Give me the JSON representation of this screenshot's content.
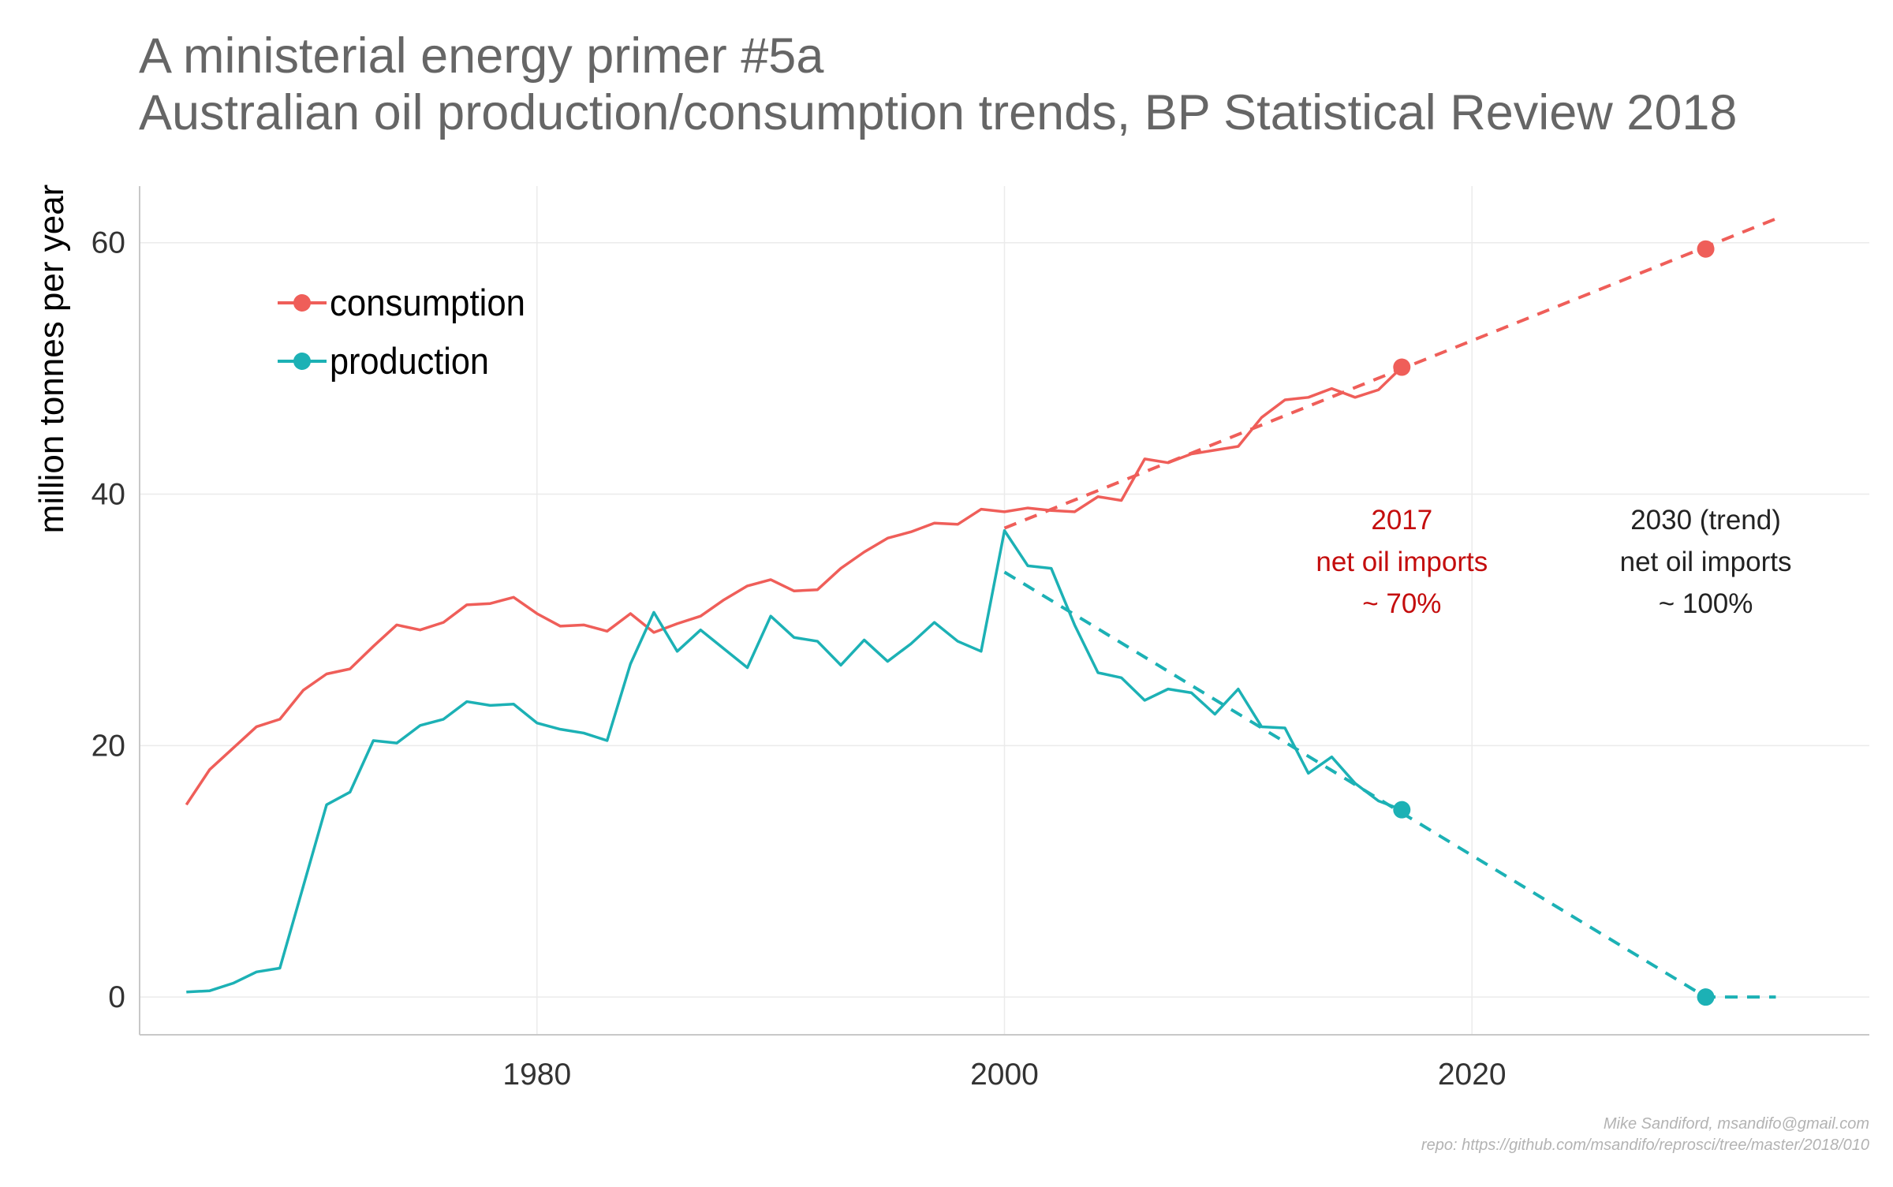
{
  "title": "A ministerial energy primer #5a",
  "subtitle": "Australian oil production/consumption trends, BP Statistical Review 2018",
  "credit_line1": "Mike Sandiford, msandifo@gmail.com",
  "credit_line2": "repo: https://github.com/msandifo/reprosci/tree/master/2018/010",
  "colors": {
    "consumption": "#ef5e59",
    "production": "#1cb1b5",
    "annotation_2017": "#c40d0d",
    "annotation_2030": "#222222"
  },
  "chart_data": {
    "type": "line",
    "ylabel": "million tonnes per year",
    "xlabel": "",
    "xlim": [
      1963,
      2037
    ],
    "ylim": [
      -3,
      64.5
    ],
    "x_ticks": [
      1980,
      2000,
      2020
    ],
    "y_ticks": [
      0,
      20,
      40,
      60
    ],
    "grid": true,
    "legend_position": "top-left",
    "x": [
      1965,
      1966,
      1967,
      1968,
      1969,
      1970,
      1971,
      1972,
      1973,
      1974,
      1975,
      1976,
      1977,
      1978,
      1979,
      1980,
      1981,
      1982,
      1983,
      1984,
      1985,
      1986,
      1987,
      1988,
      1989,
      1990,
      1991,
      1992,
      1993,
      1994,
      1995,
      1996,
      1997,
      1998,
      1999,
      2000,
      2001,
      2002,
      2003,
      2004,
      2005,
      2006,
      2007,
      2008,
      2009,
      2010,
      2011,
      2012,
      2013,
      2014,
      2015,
      2016,
      2017
    ],
    "series": [
      {
        "name": "consumption",
        "values": [
          15.3,
          18.1,
          19.8,
          21.5,
          22.1,
          24.4,
          25.7,
          26.1,
          27.9,
          29.6,
          29.2,
          29.8,
          31.2,
          31.3,
          31.8,
          30.5,
          29.5,
          29.6,
          29.1,
          30.5,
          29.0,
          29.7,
          30.3,
          31.6,
          32.7,
          33.2,
          32.3,
          32.4,
          34.1,
          35.4,
          36.5,
          37.0,
          37.7,
          37.6,
          38.8,
          38.6,
          38.9,
          38.7,
          38.6,
          39.8,
          39.5,
          42.8,
          42.5,
          43.2,
          43.5,
          43.8,
          46.1,
          47.5,
          47.7,
          48.4,
          47.7,
          48.3,
          50.1
        ]
      },
      {
        "name": "production",
        "values": [
          0.4,
          0.5,
          1.1,
          2.0,
          2.3,
          8.8,
          15.3,
          16.3,
          20.4,
          20.2,
          21.6,
          22.1,
          23.5,
          23.2,
          23.3,
          21.8,
          21.3,
          21.0,
          20.4,
          26.5,
          30.6,
          27.5,
          29.2,
          27.7,
          26.2,
          30.3,
          28.6,
          28.3,
          26.4,
          28.4,
          26.7,
          28.1,
          29.8,
          28.3,
          27.5,
          37.1,
          34.3,
          34.1,
          29.6,
          25.8,
          25.4,
          23.6,
          24.5,
          24.2,
          22.5,
          24.5,
          21.5,
          21.4,
          17.8,
          19.1,
          17.0,
          15.6,
          14.9
        ]
      }
    ],
    "trends": [
      {
        "name": "consumption",
        "x": [
          2000,
          2033
        ],
        "values": [
          37.3,
          61.9
        ]
      },
      {
        "name": "production",
        "x": [
          2000,
          2030,
          2033
        ],
        "values": [
          33.8,
          0.0,
          0.0
        ]
      }
    ],
    "markers": [
      {
        "series": "consumption",
        "x": 2017,
        "value": 50.1
      },
      {
        "series": "consumption",
        "x": 2030,
        "value": 59.5
      },
      {
        "series": "production",
        "x": 2017,
        "value": 14.9
      },
      {
        "series": "production",
        "x": 2030,
        "value": 0.0
      }
    ],
    "annotations": [
      {
        "lines": [
          "2017",
          "net oil imports",
          "~ 70%"
        ],
        "x": 2017,
        "value": 37.2,
        "color": "#c40d0d"
      },
      {
        "lines": [
          "2030 (trend)",
          "net oil imports",
          "~ 100%"
        ],
        "x": 2030,
        "value": 37.2,
        "color": "#222222"
      }
    ]
  }
}
